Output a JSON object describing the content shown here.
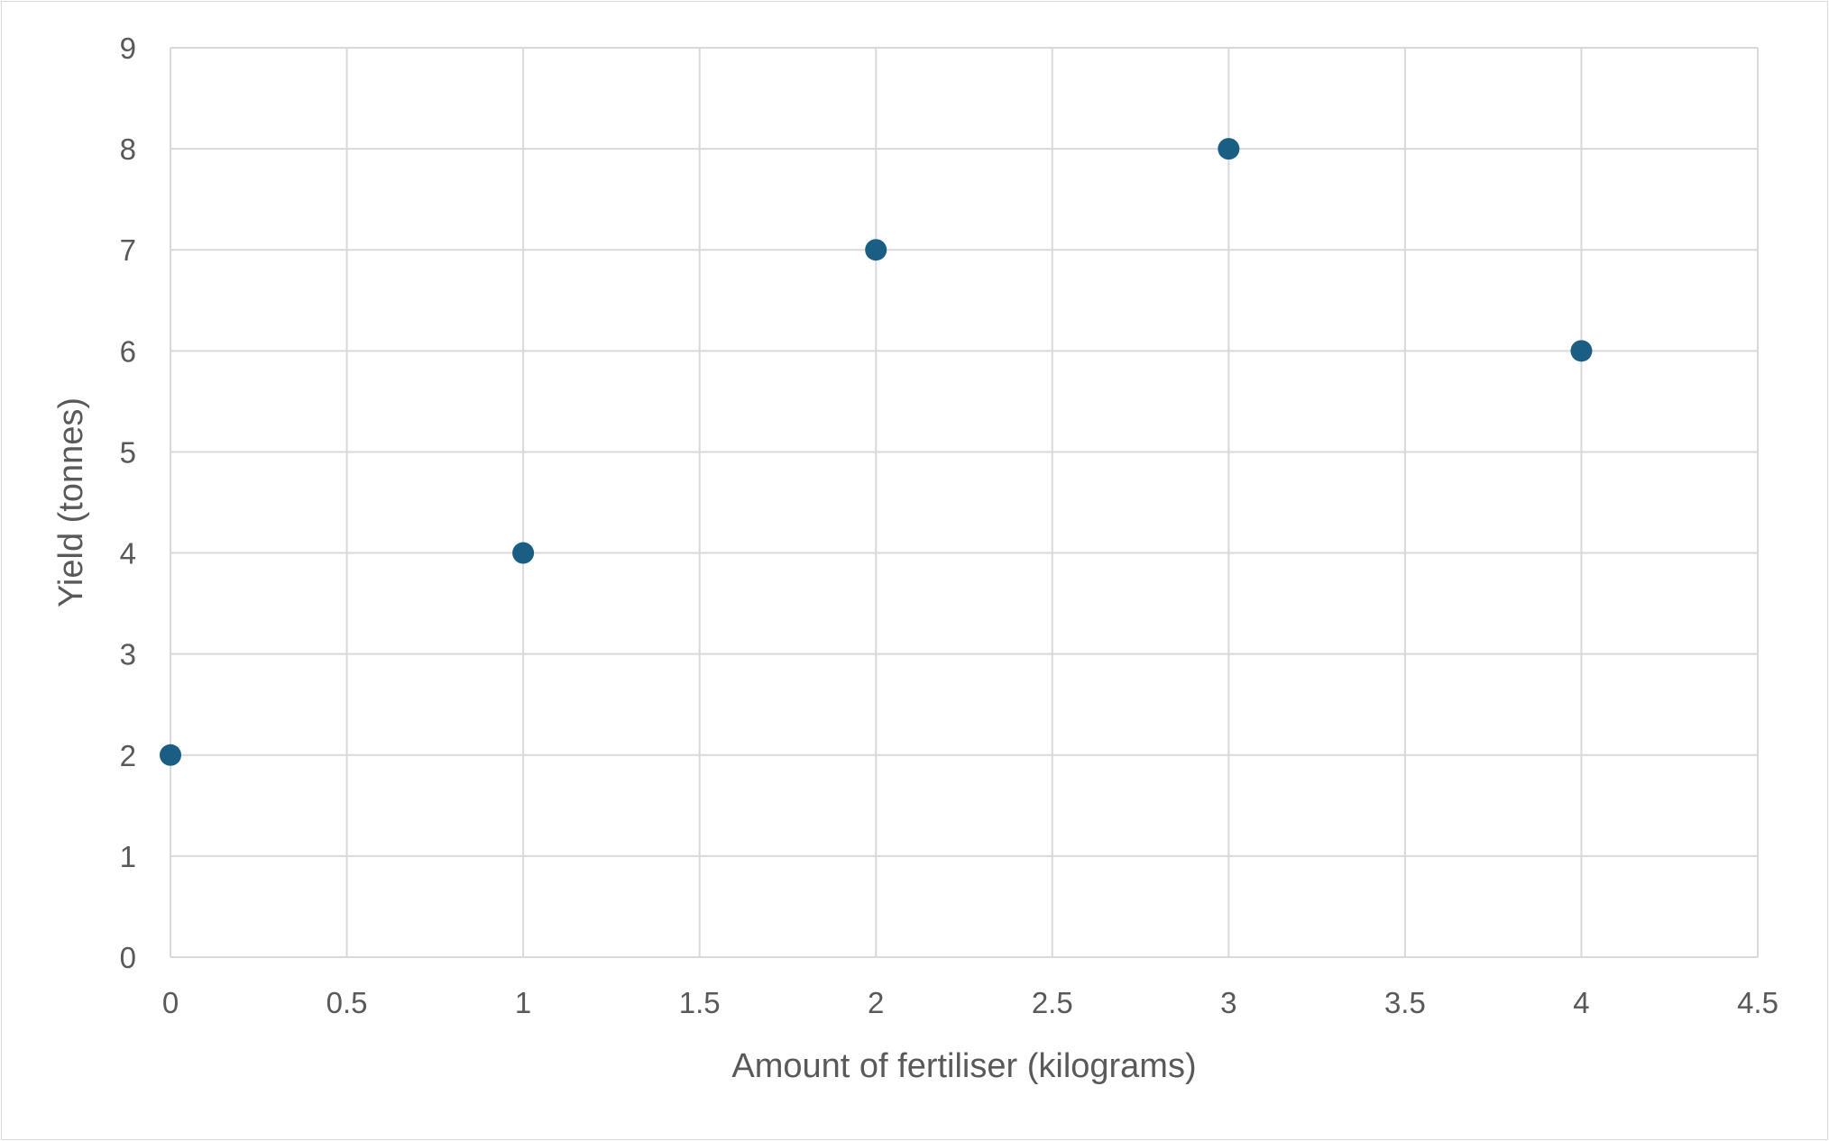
{
  "chart_data": {
    "type": "scatter",
    "title": "",
    "xlabel": "Amount of fertiliser (kilograms)",
    "ylabel": "Yield (tonnes)",
    "xlim": [
      0,
      4.5
    ],
    "ylim": [
      0,
      9
    ],
    "x_ticks": [
      "0",
      "0.5",
      "1",
      "1.5",
      "2",
      "2.5",
      "3",
      "3.5",
      "4",
      "4.5"
    ],
    "y_ticks": [
      "0",
      "1",
      "2",
      "3",
      "4",
      "5",
      "6",
      "7",
      "8",
      "9"
    ],
    "grid": true,
    "legend": "none",
    "marker_color": "#1a5e83",
    "series": [
      {
        "x": [
          0,
          1,
          2,
          3,
          4
        ],
        "y": [
          2,
          4,
          7,
          8,
          6
        ]
      }
    ]
  }
}
